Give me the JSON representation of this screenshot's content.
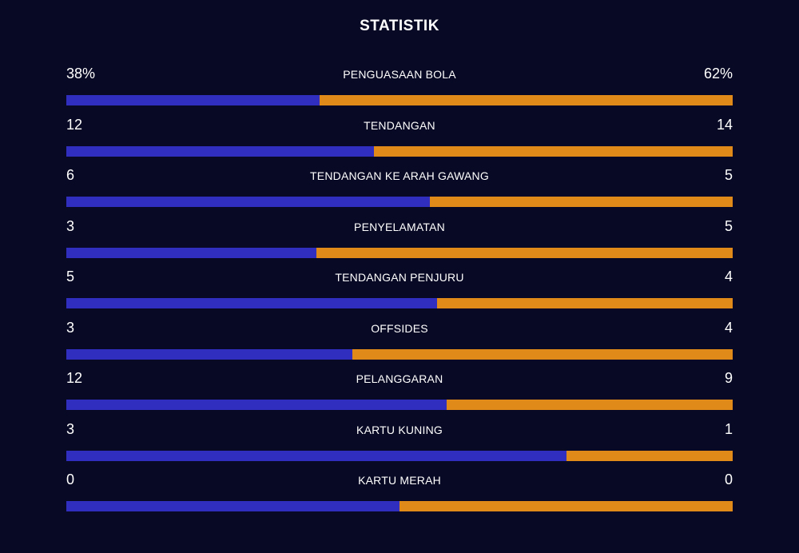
{
  "title": "STATISTIK",
  "colors": {
    "background": "#080924",
    "home_bar": "#2f2ebe",
    "away_bar": "#e08a1a"
  },
  "stats": [
    {
      "label": "PENGUASAAN BOLA",
      "home": "38%",
      "away": "62%",
      "home_share": 0.38
    },
    {
      "label": "TENDANGAN",
      "home": "12",
      "away": "14",
      "home_share": 0.462
    },
    {
      "label": "TENDANGAN KE ARAH GAWANG",
      "home": "6",
      "away": "5",
      "home_share": 0.545
    },
    {
      "label": "PENYELAMATAN",
      "home": "3",
      "away": "5",
      "home_share": 0.375
    },
    {
      "label": "TENDANGAN PENJURU",
      "home": "5",
      "away": "4",
      "home_share": 0.556
    },
    {
      "label": "OFFSIDES",
      "home": "3",
      "away": "4",
      "home_share": 0.429
    },
    {
      "label": "PELANGGARAN",
      "home": "12",
      "away": "9",
      "home_share": 0.571
    },
    {
      "label": "KARTU KUNING",
      "home": "3",
      "away": "1",
      "home_share": 0.75
    },
    {
      "label": "KARTU MERAH",
      "home": "0",
      "away": "0",
      "home_share": 0.5
    }
  ]
}
